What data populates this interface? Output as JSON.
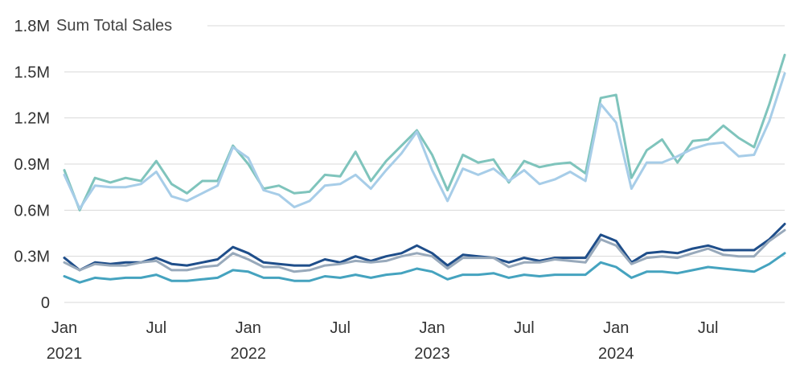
{
  "chart_data": {
    "type": "line",
    "title": "Sum Total Sales",
    "xlabel": "",
    "ylabel": "",
    "x": [
      "2021-01",
      "2021-02",
      "2021-03",
      "2021-04",
      "2021-05",
      "2021-06",
      "2021-07",
      "2021-08",
      "2021-09",
      "2021-10",
      "2021-11",
      "2021-12",
      "2022-01",
      "2022-02",
      "2022-03",
      "2022-04",
      "2022-05",
      "2022-06",
      "2022-07",
      "2022-08",
      "2022-09",
      "2022-10",
      "2022-11",
      "2022-12",
      "2023-01",
      "2023-02",
      "2023-03",
      "2023-04",
      "2023-05",
      "2023-06",
      "2023-07",
      "2023-08",
      "2023-09",
      "2023-10",
      "2023-11",
      "2023-12",
      "2024-01",
      "2024-02",
      "2024-03",
      "2024-04",
      "2024-05",
      "2024-06",
      "2024-07",
      "2024-08",
      "2024-09",
      "2024-10",
      "2024-11",
      "2024-12"
    ],
    "x_ticks": [
      {
        "index": 0,
        "label": "Jan",
        "year": "2021"
      },
      {
        "index": 6,
        "label": "Jul",
        "year": ""
      },
      {
        "index": 12,
        "label": "Jan",
        "year": "2022"
      },
      {
        "index": 18,
        "label": "Jul",
        "year": ""
      },
      {
        "index": 24,
        "label": "Jan",
        "year": "2023"
      },
      {
        "index": 30,
        "label": "Jul",
        "year": ""
      },
      {
        "index": 36,
        "label": "Jan",
        "year": "2024"
      },
      {
        "index": 42,
        "label": "Jul",
        "year": ""
      }
    ],
    "y_ticks": [
      {
        "value": 0,
        "label": "0"
      },
      {
        "value": 300000,
        "label": "0.3M"
      },
      {
        "value": 600000,
        "label": "0.6M"
      },
      {
        "value": 900000,
        "label": "0.9M"
      },
      {
        "value": 1200000,
        "label": "1.2M"
      },
      {
        "value": 1500000,
        "label": "1.5M"
      },
      {
        "value": 1800000,
        "label": "1.8M"
      }
    ],
    "ylim": [
      0,
      1800000
    ],
    "grid": true,
    "legend": "none",
    "series": [
      {
        "color": "#7fc4bc",
        "values": [
          860000,
          600000,
          810000,
          780000,
          810000,
          790000,
          920000,
          770000,
          710000,
          790000,
          790000,
          1020000,
          900000,
          740000,
          760000,
          710000,
          720000,
          830000,
          820000,
          980000,
          790000,
          920000,
          1020000,
          1120000,
          960000,
          730000,
          960000,
          910000,
          930000,
          780000,
          920000,
          880000,
          900000,
          910000,
          840000,
          1330000,
          1350000,
          810000,
          990000,
          1060000,
          910000,
          1050000,
          1060000,
          1150000,
          1070000,
          1010000,
          1290000,
          1610000
        ]
      },
      {
        "color": "#a7cde8",
        "values": [
          830000,
          610000,
          760000,
          750000,
          750000,
          770000,
          850000,
          690000,
          660000,
          710000,
          760000,
          1010000,
          940000,
          730000,
          700000,
          620000,
          660000,
          760000,
          770000,
          830000,
          740000,
          860000,
          970000,
          1110000,
          860000,
          660000,
          870000,
          830000,
          870000,
          790000,
          860000,
          770000,
          800000,
          850000,
          790000,
          1290000,
          1170000,
          740000,
          910000,
          910000,
          950000,
          1000000,
          1030000,
          1040000,
          950000,
          960000,
          1180000,
          1490000
        ]
      },
      {
        "color": "#1f4e8a",
        "values": [
          290000,
          210000,
          260000,
          250000,
          260000,
          260000,
          290000,
          250000,
          240000,
          260000,
          280000,
          360000,
          320000,
          260000,
          250000,
          240000,
          240000,
          280000,
          260000,
          300000,
          270000,
          300000,
          320000,
          370000,
          320000,
          240000,
          310000,
          300000,
          290000,
          260000,
          290000,
          270000,
          290000,
          290000,
          290000,
          440000,
          400000,
          260000,
          320000,
          330000,
          320000,
          350000,
          370000,
          340000,
          340000,
          340000,
          410000,
          510000
        ]
      },
      {
        "color": "#98a9bb",
        "values": [
          260000,
          210000,
          250000,
          240000,
          240000,
          260000,
          270000,
          210000,
          210000,
          230000,
          240000,
          320000,
          280000,
          230000,
          230000,
          200000,
          210000,
          240000,
          250000,
          270000,
          260000,
          270000,
          300000,
          320000,
          300000,
          220000,
          290000,
          290000,
          290000,
          230000,
          260000,
          260000,
          280000,
          270000,
          260000,
          410000,
          370000,
          250000,
          290000,
          300000,
          290000,
          320000,
          350000,
          310000,
          300000,
          300000,
          400000,
          470000
        ]
      },
      {
        "color": "#45a3bf",
        "values": [
          170000,
          130000,
          160000,
          150000,
          160000,
          160000,
          180000,
          140000,
          140000,
          150000,
          160000,
          210000,
          200000,
          160000,
          160000,
          140000,
          140000,
          170000,
          160000,
          180000,
          160000,
          180000,
          190000,
          220000,
          200000,
          150000,
          180000,
          180000,
          190000,
          160000,
          180000,
          170000,
          180000,
          180000,
          180000,
          260000,
          230000,
          160000,
          200000,
          200000,
          190000,
          210000,
          230000,
          220000,
          210000,
          200000,
          250000,
          320000
        ]
      }
    ]
  }
}
